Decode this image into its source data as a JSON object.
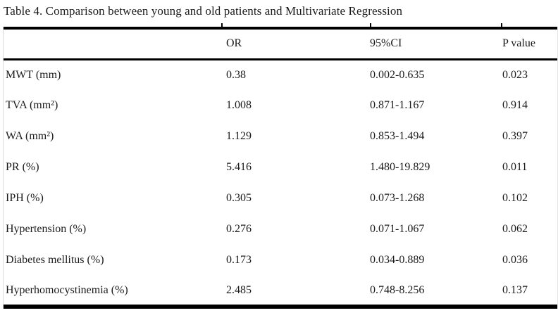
{
  "title": "Table 4. Comparison between young and old patients and Multivariate Regression",
  "table": {
    "columns": [
      "",
      "OR",
      "95%CI",
      "P value"
    ],
    "rows": [
      {
        "label": "MWT (mm)",
        "or": "0.38",
        "ci": "0.002-0.635",
        "p": "0.023"
      },
      {
        "label": "TVA (mm²)",
        "or": "1.008",
        "ci": "0.871-1.167",
        "p": "0.914"
      },
      {
        "label": "WA (mm²)",
        "or": "1.129",
        "ci": "0.853-1.494",
        "p": "0.397"
      },
      {
        "label": "PR (%)",
        "or": "5.416",
        "ci": "1.480-19.829",
        "p": "0.011"
      },
      {
        "label": "IPH (%)",
        "or": "0.305",
        "ci": "0.073-1.268",
        "p": "0.102"
      },
      {
        "label": "Hypertension (%)",
        "or": "0.276",
        "ci": "0.071-1.067",
        "p": "0.062"
      },
      {
        "label": "Diabetes mellitus (%)",
        "or": "0.173",
        "ci": "0.034-0.889",
        "p": "0.036"
      },
      {
        "label": "Hyperhomocystinemia (%)",
        "or": "2.485",
        "ci": "0.748-8.256",
        "p": "0.137"
      }
    ]
  },
  "colors": {
    "text": "#1b1b1b",
    "rule": "#000000",
    "background": "#ffffff"
  }
}
